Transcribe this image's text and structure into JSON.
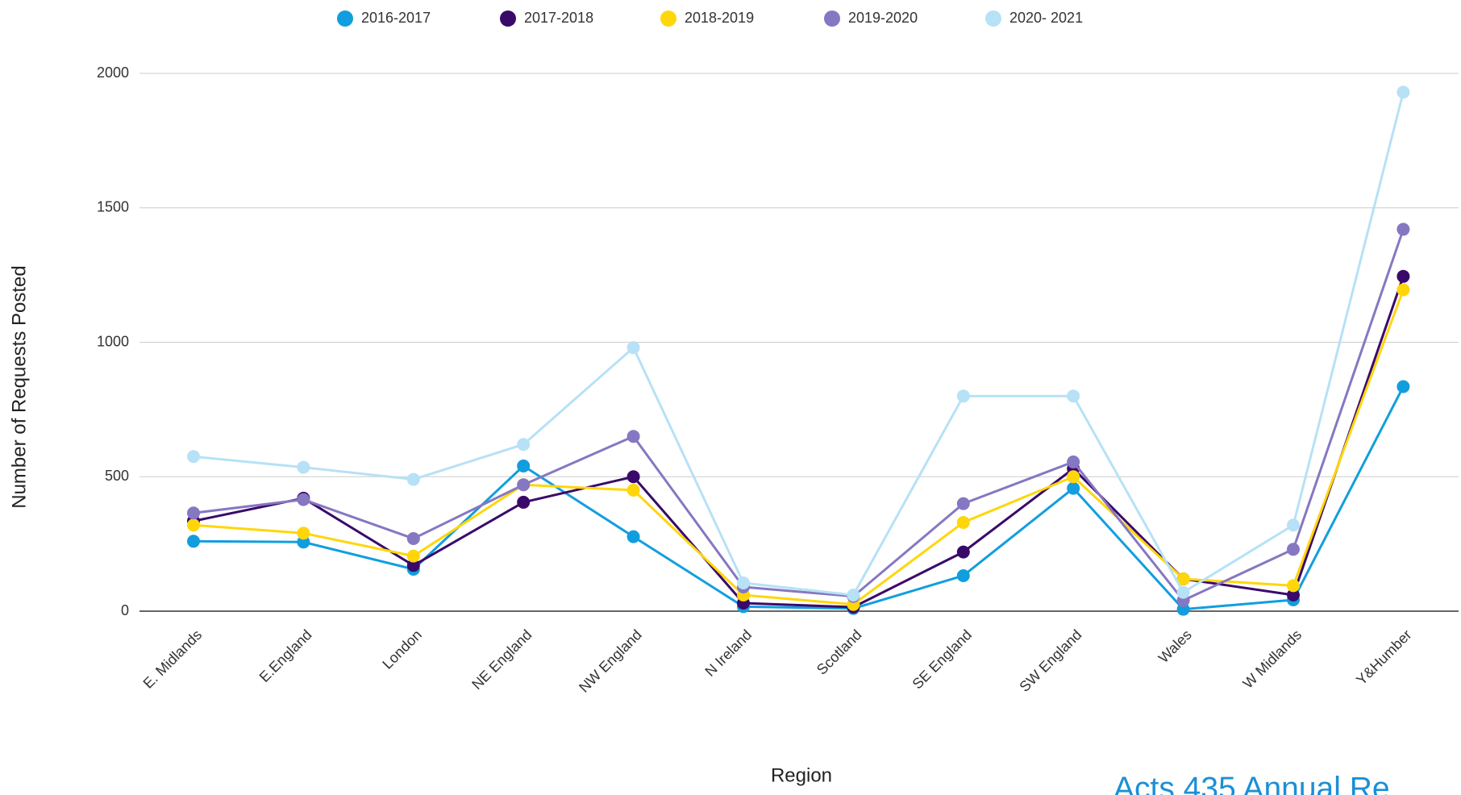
{
  "chart_data": {
    "type": "line",
    "x_label": "Region",
    "y_label": "Number of Requests Posted",
    "footer_text": "Acts 435 Annual Re",
    "categories": [
      "E. Midlands",
      "E.England",
      "London",
      "NE England",
      "NW England",
      "N Ireland",
      "Scotland",
      "SE England",
      "SW England",
      "Wales",
      "W Midlands",
      "Y&Humber"
    ],
    "series": [
      {
        "name": "2016-2017",
        "color": "#129ede",
        "values": [
          260,
          257,
          156,
          540,
          277,
          17,
          10,
          132,
          457,
          7,
          42,
          835
        ]
      },
      {
        "name": "2017-2018",
        "color": "#3a0a6a",
        "values": [
          335,
          420,
          170,
          405,
          500,
          30,
          15,
          220,
          530,
          120,
          60,
          1245
        ]
      },
      {
        "name": "2018-2019",
        "color": "#ffd60a",
        "values": [
          320,
          290,
          205,
          470,
          450,
          60,
          25,
          330,
          500,
          120,
          95,
          1195
        ]
      },
      {
        "name": "2019-2020",
        "color": "#8677c2",
        "values": [
          365,
          415,
          270,
          470,
          650,
          90,
          55,
          400,
          555,
          40,
          230,
          1420
        ]
      },
      {
        "name": "2020- 2021",
        "color": "#b7e1f6",
        "values": [
          575,
          535,
          490,
          620,
          980,
          105,
          60,
          800,
          800,
          70,
          320,
          1930
        ]
      }
    ],
    "ylim": [
      0,
      2000
    ],
    "yticks": [
      0,
      500,
      1000,
      1500,
      2000
    ],
    "grid": true,
    "legend": "top"
  }
}
